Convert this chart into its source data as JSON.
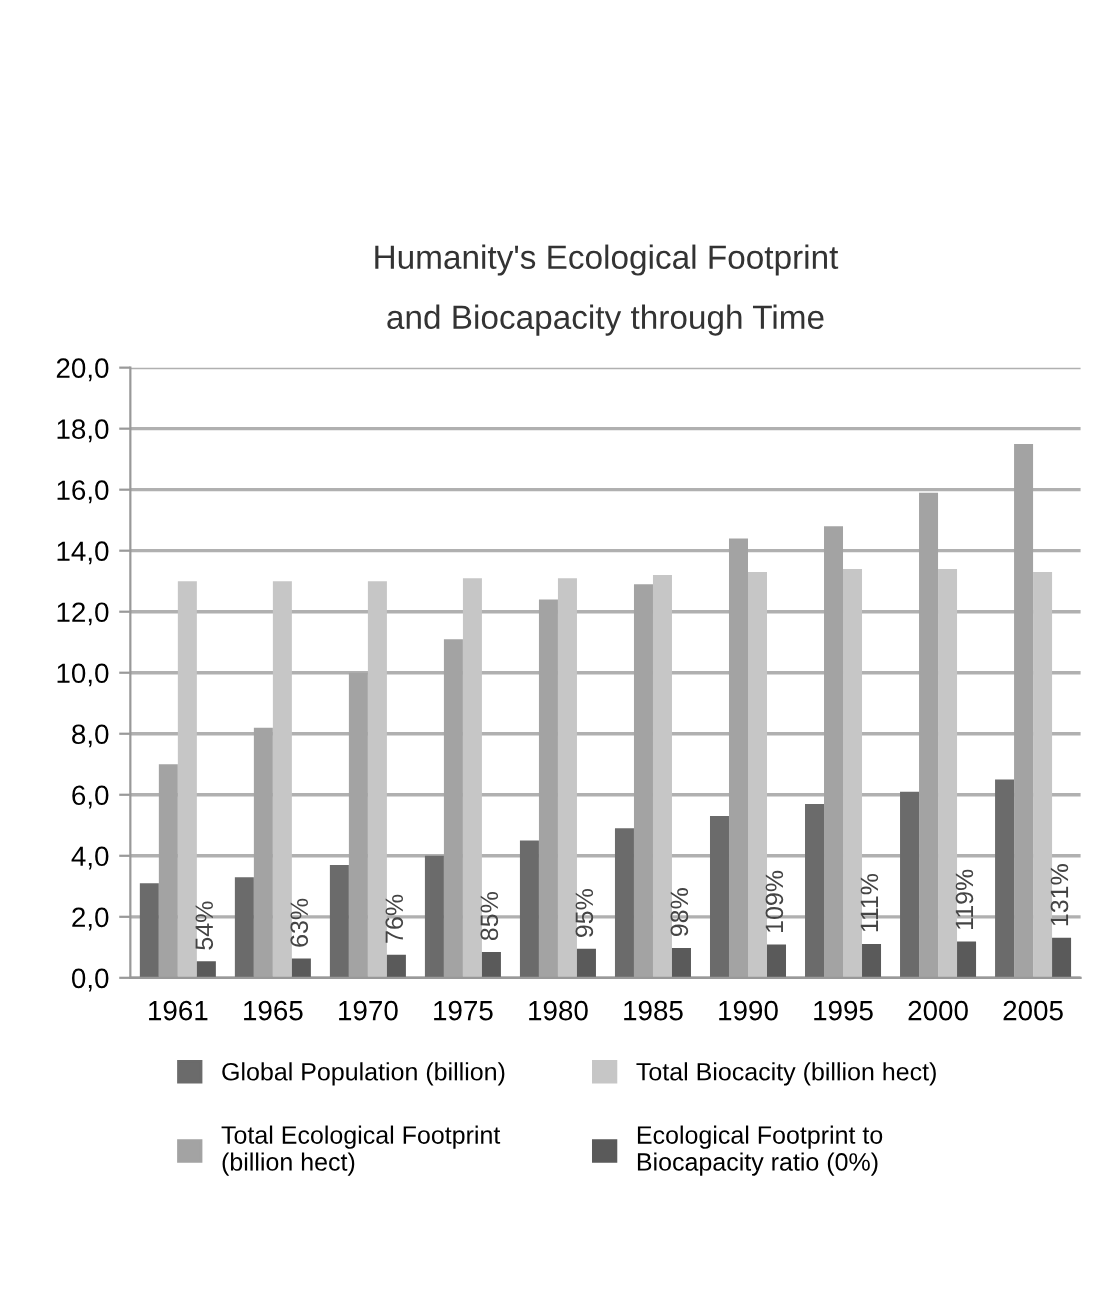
{
  "chart_data": {
    "type": "bar",
    "title": "Humanity's Ecological Footprint\nand Biocapacity through Time",
    "categories": [
      "1961",
      "1965",
      "1970",
      "1975",
      "1980",
      "1985",
      "1990",
      "1995",
      "2000",
      "2005"
    ],
    "series": [
      {
        "name": "Global Population (billion)",
        "color": "#6b6b6b",
        "values": [
          3.1,
          3.3,
          3.7,
          4.0,
          4.5,
          4.9,
          5.3,
          5.7,
          6.1,
          6.5
        ]
      },
      {
        "name": "Total Ecological Footprint\n(billion hect)",
        "color": "#a3a3a3",
        "values": [
          7.0,
          8.2,
          10.0,
          11.1,
          12.4,
          12.9,
          14.4,
          14.8,
          15.9,
          17.5
        ]
      },
      {
        "name": "Total Biocacity (billion hect)",
        "color": "#c6c6c6",
        "values": [
          13.0,
          13.0,
          13.0,
          13.1,
          13.1,
          13.2,
          13.3,
          13.4,
          13.4,
          13.3
        ]
      },
      {
        "name": "Ecological Footprint to\nBiocapacity ratio (0%)",
        "color": "#5a5a5a",
        "values": [
          0.54,
          0.63,
          0.76,
          0.85,
          0.95,
          0.98,
          1.09,
          1.11,
          1.19,
          1.31
        ],
        "value_labels": [
          "54%",
          "63%",
          "76%",
          "85%",
          "95%",
          "98%",
          "109%",
          "111%",
          "119%",
          "131%"
        ]
      }
    ],
    "ylim": [
      0,
      20
    ],
    "yticks": [
      {
        "value": 0,
        "label": "0,0"
      },
      {
        "value": 2,
        "label": "2,0"
      },
      {
        "value": 4,
        "label": "4,0"
      },
      {
        "value": 6,
        "label": "6,0"
      },
      {
        "value": 8,
        "label": "8,0"
      },
      {
        "value": 10,
        "label": "10,0"
      },
      {
        "value": 12,
        "label": "12,0"
      },
      {
        "value": 14,
        "label": "14,0"
      },
      {
        "value": 16,
        "label": "16,0"
      },
      {
        "value": 18,
        "label": "18,0"
      },
      {
        "value": 20,
        "label": "20,0"
      }
    ],
    "grid": "y",
    "legend": "bottom"
  }
}
